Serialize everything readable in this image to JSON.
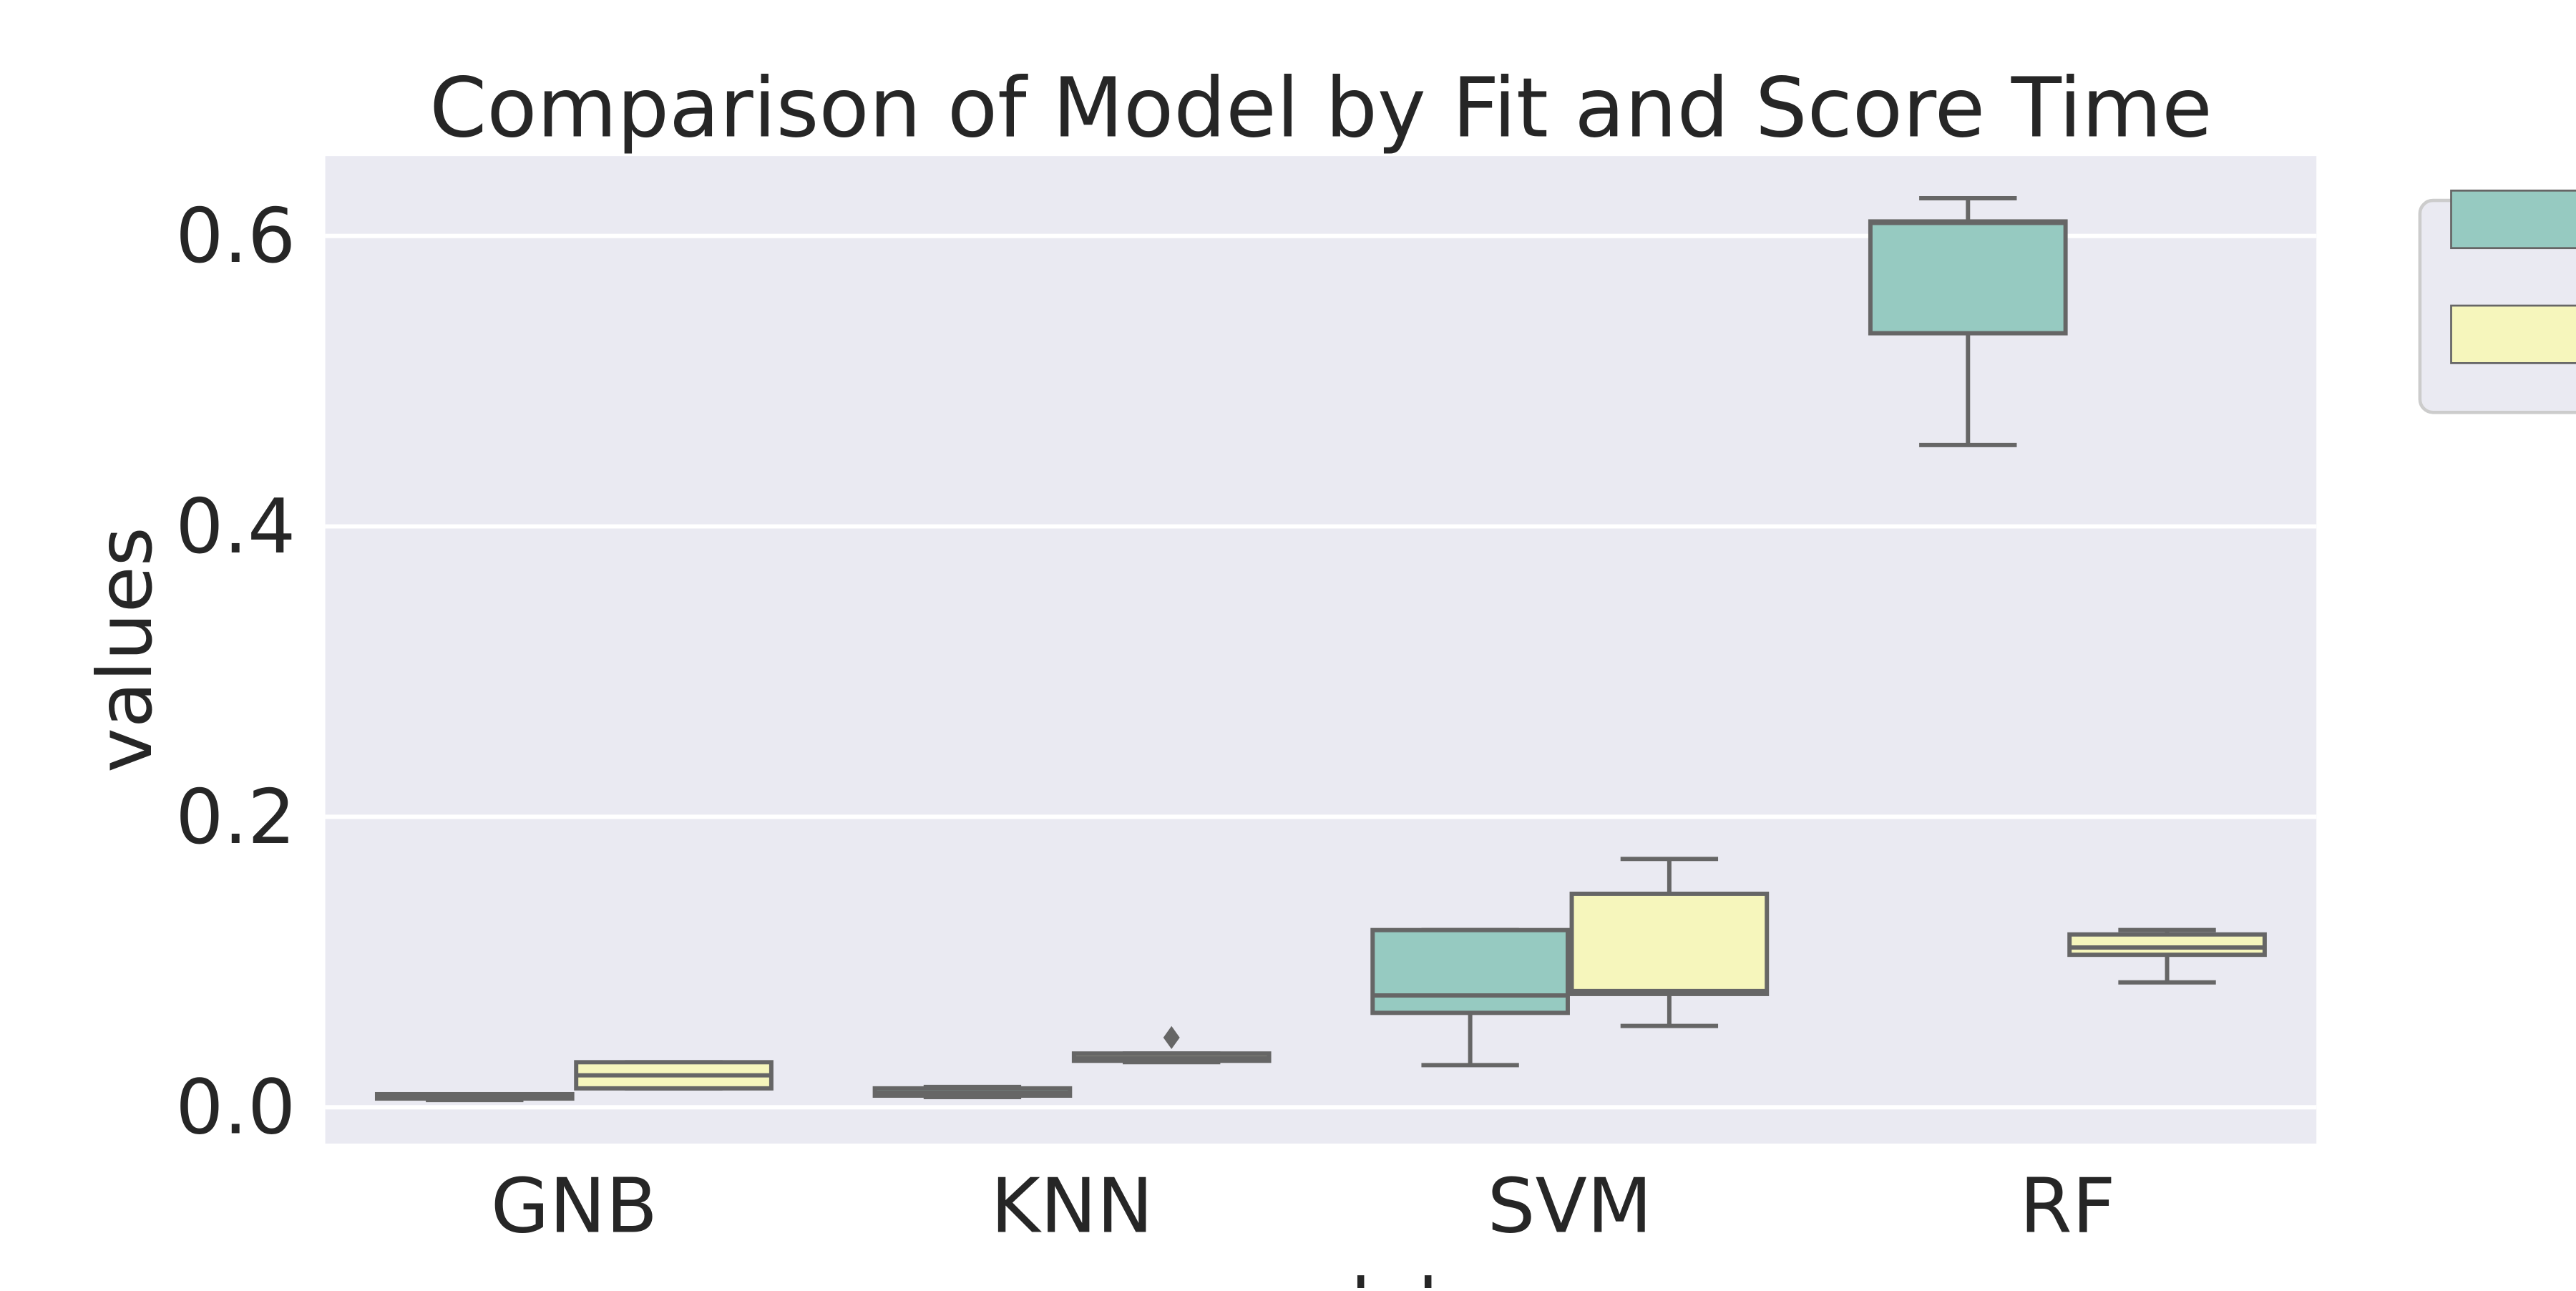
{
  "chart_data": {
    "type": "box",
    "title": "Comparison of Model by Fit and Score Time",
    "xlabel": "model",
    "ylabel": "values",
    "categories": [
      "GNB",
      "KNN",
      "SVM",
      "RF"
    ],
    "ylim": [
      -0.025,
      0.655
    ],
    "yticks": [
      0.0,
      0.2,
      0.4,
      0.6
    ],
    "ytick_labels": [
      "0.0",
      "0.2",
      "0.4",
      "0.6"
    ],
    "grid": true,
    "legend_position": "outside-right",
    "series": [
      {
        "color": "#96cac1",
        "boxes": [
          {
            "min": 0.005,
            "q1": 0.006,
            "median": 0.007,
            "q3": 0.009,
            "max": 0.009,
            "outliers": []
          },
          {
            "min": 0.007,
            "q1": 0.008,
            "median": 0.01,
            "q3": 0.013,
            "max": 0.014,
            "outliers": []
          },
          {
            "min": 0.029,
            "q1": 0.065,
            "median": 0.077,
            "q3": 0.122,
            "max": 0.122,
            "outliers": []
          },
          {
            "min": 0.456,
            "q1": 0.533,
            "median": 0.609,
            "q3": 0.61,
            "max": 0.626,
            "outliers": []
          }
        ]
      },
      {
        "color": "#f6f6bc",
        "boxes": [
          {
            "min": 0.013,
            "q1": 0.013,
            "median": 0.022,
            "q3": 0.031,
            "max": 0.031,
            "outliers": []
          },
          {
            "min": 0.031,
            "q1": 0.032,
            "median": 0.034,
            "q3": 0.037,
            "max": 0.037,
            "outliers": [
              0.048
            ]
          },
          {
            "min": 0.056,
            "q1": 0.078,
            "median": 0.08,
            "q3": 0.147,
            "max": 0.171,
            "outliers": []
          },
          {
            "min": 0.086,
            "q1": 0.105,
            "median": 0.11,
            "q3": 0.119,
            "max": 0.122,
            "outliers": []
          }
        ]
      }
    ],
    "colors": {
      "plot_background": "#eaeaf2",
      "grid": "#ffffff",
      "box_edge": "#666666",
      "legend_background": "#eaeaf2",
      "legend_border": "#cccccc"
    }
  }
}
